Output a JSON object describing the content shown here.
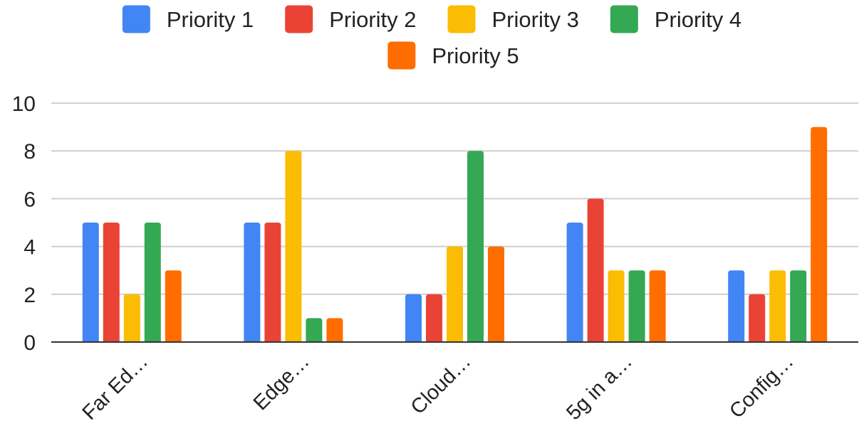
{
  "chart_data": {
    "type": "bar",
    "categories": [
      "Far Ed…",
      "Edge…",
      "Cloud…",
      "5g in a…",
      "Config…"
    ],
    "series": [
      {
        "name": "Priority 1",
        "color": "#4285F4",
        "values": [
          5,
          5,
          2,
          5,
          3
        ]
      },
      {
        "name": "Priority 2",
        "color": "#EA4335",
        "values": [
          5,
          5,
          2,
          6,
          2
        ]
      },
      {
        "name": "Priority 3",
        "color": "#FBBC04",
        "values": [
          2,
          8,
          4,
          3,
          3
        ]
      },
      {
        "name": "Priority 4",
        "color": "#34A853",
        "values": [
          5,
          1,
          8,
          3,
          3
        ]
      },
      {
        "name": "Priority 5",
        "color": "#FF6D01",
        "values": [
          3,
          1,
          4,
          3,
          9
        ]
      }
    ],
    "yticks": [
      0,
      2,
      4,
      6,
      8,
      10
    ],
    "ylim": [
      0,
      10
    ],
    "title": "",
    "xlabel": "",
    "ylabel": "",
    "grid": true,
    "legend_position": "top"
  }
}
